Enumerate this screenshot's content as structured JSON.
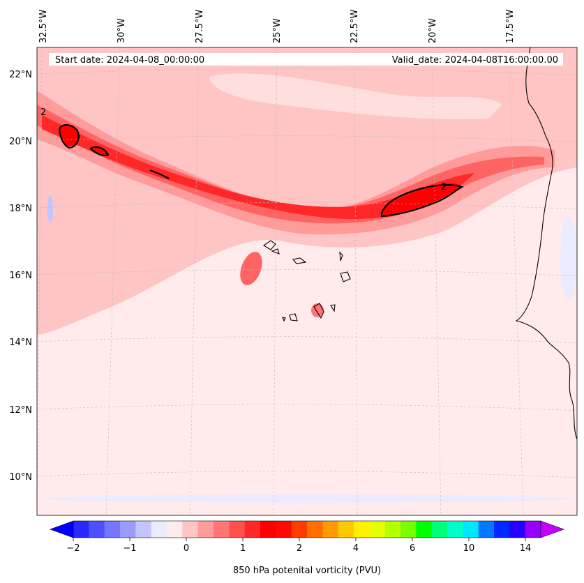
{
  "chart_data": {
    "type": "heatmap",
    "title": "",
    "variable": "850 hPa potenital vorticity (PVU)",
    "start_date_label": "Start date: 2024-04-08_00:00:00",
    "valid_date_label": "Valid_date: 2024-04-08T16:00:00.00",
    "lat_ticks": [
      "22°N",
      "20°N",
      "18°N",
      "16°N",
      "14°N",
      "12°N",
      "10°N"
    ],
    "lon_ticks": [
      "32.5°W",
      "30°W",
      "27.5°W",
      "25°W",
      "22.5°W",
      "20°W",
      "17.5°W"
    ],
    "lat_range": [
      8.9,
      22.7
    ],
    "lon_range": [
      -33,
      -15.5
    ],
    "contour_level": "2",
    "colorbar": {
      "label": "850 hPa potenital vorticity (PVU)",
      "tick_labels": [
        "−2",
        "−1",
        "0",
        "1",
        "2",
        "4",
        "6",
        "10",
        "14"
      ],
      "levels": [
        -2,
        -1.5,
        -1,
        -0.5,
        0,
        0.5,
        1,
        1.5,
        2,
        3,
        4,
        5,
        6,
        8,
        10,
        12,
        14
      ],
      "colors": [
        "#0000ff",
        "#2828ff",
        "#4f4fff",
        "#7575ff",
        "#9b9bff",
        "#c4c4ff",
        "#ebebff",
        "#ffebeb",
        "#ffc4c4",
        "#ff9b9b",
        "#ff7575",
        "#ff4f4f",
        "#ff2828",
        "#ff0000",
        "#ff0a00",
        "#ff3c00",
        "#ff6e00",
        "#ff9b00",
        "#ffc800",
        "#fff000",
        "#e6ff00",
        "#b4ff00",
        "#78ff00",
        "#00ff00",
        "#00ff78",
        "#00ffc8",
        "#00e6ff",
        "#0078ff",
        "#0028ff",
        "#2800ff",
        "#9600ff",
        "#c800ff"
      ],
      "extend": "both"
    }
  }
}
